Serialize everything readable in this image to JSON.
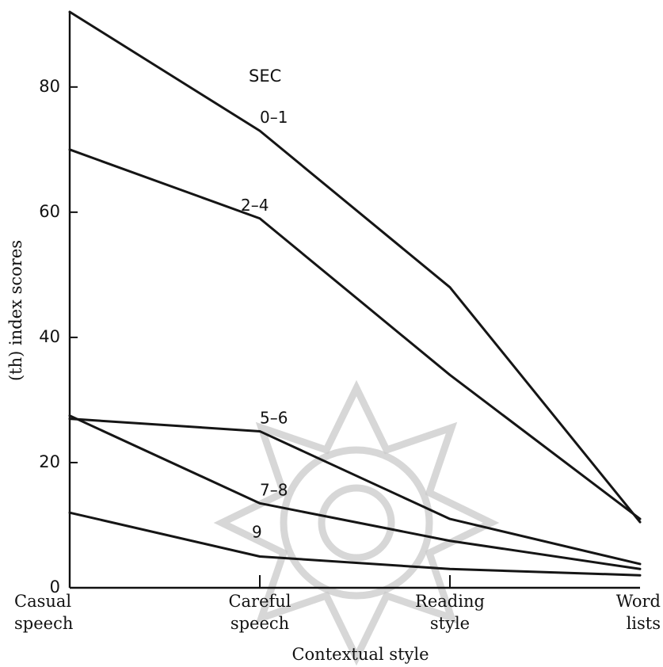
{
  "chart_data": {
    "type": "line",
    "xlabel": "Contextual style",
    "ylabel": "(th) index scores",
    "categories": [
      [
        "Casual",
        "speech"
      ],
      [
        "Careful",
        "speech"
      ],
      [
        "Reading",
        "style"
      ],
      [
        "Word",
        "lists"
      ]
    ],
    "ylim": [
      0,
      92
    ],
    "yticks": [
      0,
      20,
      40,
      60,
      80
    ],
    "grid": false,
    "legend_title": "SEC",
    "legend_placement": "labels on lines",
    "series": [
      {
        "name": "0–1",
        "values": [
          92,
          73,
          48,
          10.5
        ]
      },
      {
        "name": "2–4",
        "values": [
          70,
          59,
          34,
          11
        ]
      },
      {
        "name": "5–6",
        "values": [
          27,
          25,
          11,
          3.8
        ]
      },
      {
        "name": "7–8",
        "values": [
          27.5,
          13.5,
          7.5,
          3
        ]
      },
      {
        "name": "9",
        "values": [
          12,
          5,
          3,
          2
        ]
      }
    ],
    "line_color": "#151515",
    "axis_color": "#111111",
    "background_color": "#ffffff",
    "watermark": "decorative-seal-icon"
  }
}
